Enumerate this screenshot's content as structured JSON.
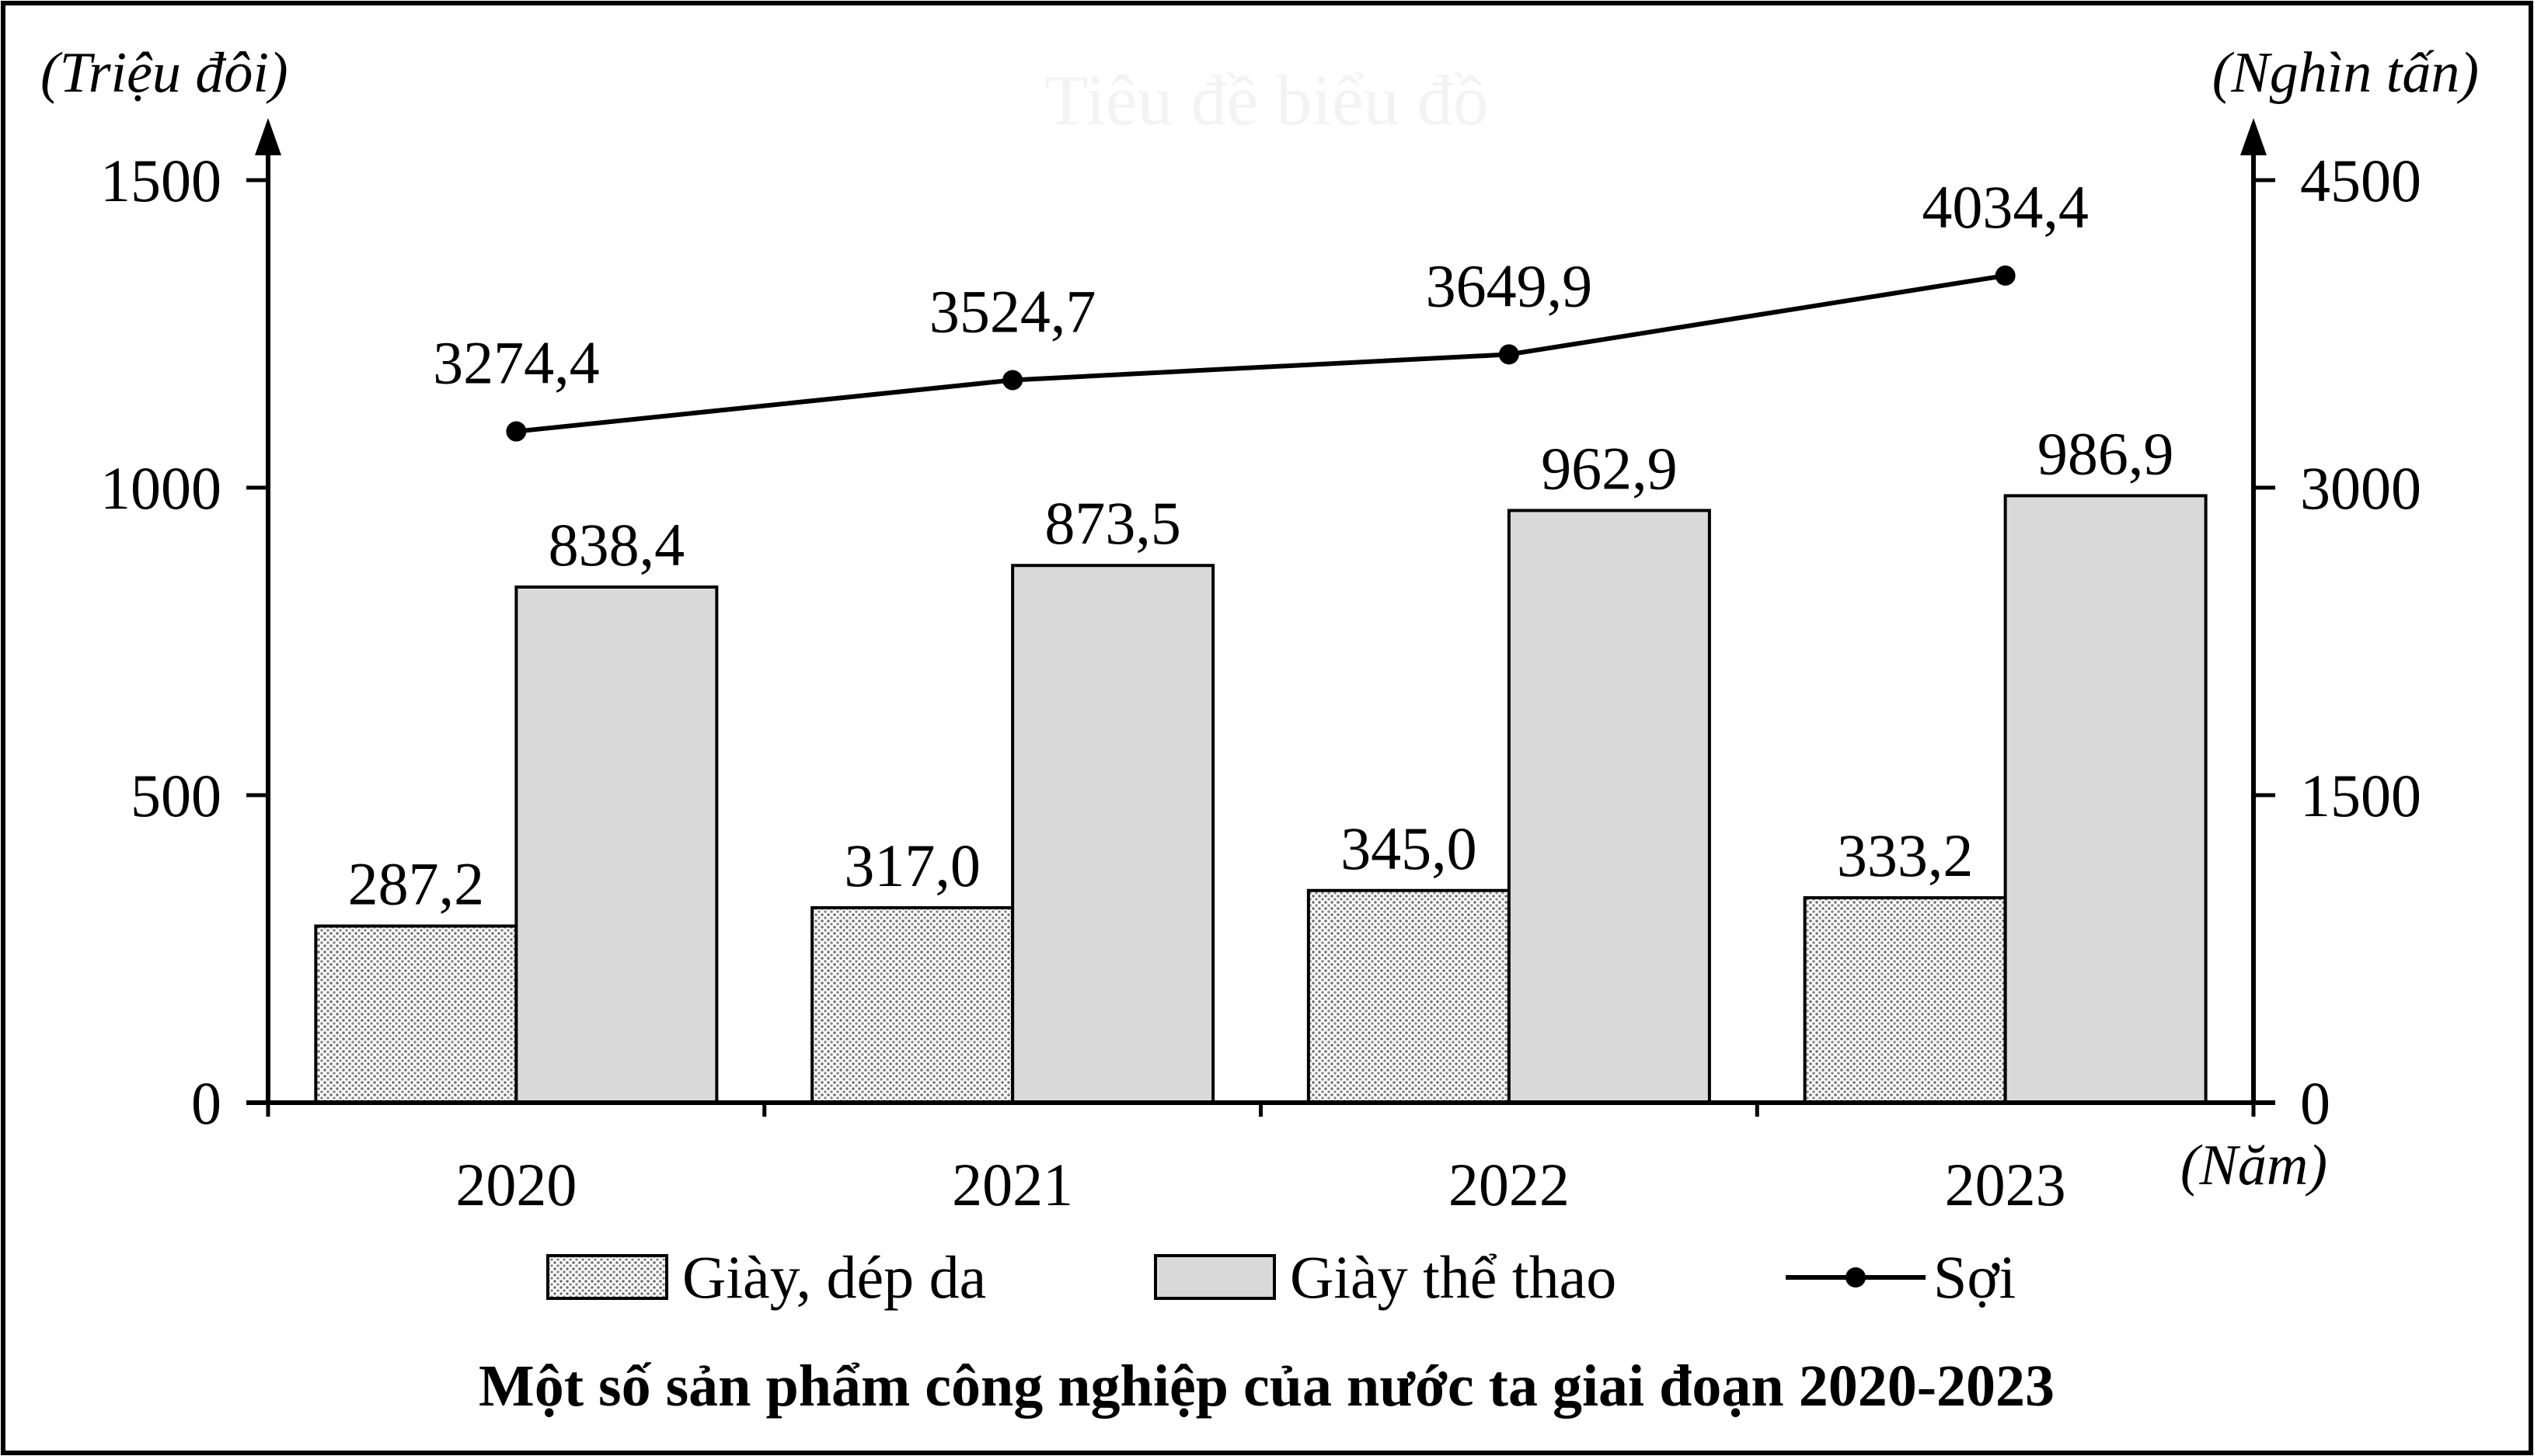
{
  "chart_data": {
    "type": "bar",
    "title": "Một số sản phẩm công nghiệp của nước ta giai đoạn 2020-2023",
    "watermark": "Tiêu đề biểu đồ",
    "categories": [
      "2020",
      "2021",
      "2022",
      "2023"
    ],
    "xlabel": "(Năm)",
    "ylabel_left": "(Triệu đôi)",
    "ylabel_right": "(Nghìn tấn)",
    "ylim_left": [
      0,
      1500
    ],
    "yticks_left": [
      "0",
      "500",
      "1000",
      "1500"
    ],
    "ylim_right": [
      0,
      4500
    ],
    "yticks_right": [
      "0",
      "1500",
      "3000",
      "4500"
    ],
    "grid": false,
    "legend_position": "bottom",
    "series": [
      {
        "name": "Giày, dép da",
        "kind": "bar",
        "axis": "left",
        "fill": "dotted-gray",
        "values": [
          287.2,
          317.0,
          345.0,
          333.2
        ],
        "labels": [
          "287,2",
          "317,0",
          "345,0",
          "333,2"
        ]
      },
      {
        "name": "Giày thể thao",
        "kind": "bar",
        "axis": "left",
        "fill": "#d9d9d9",
        "values": [
          838.4,
          873.5,
          962.9,
          986.9
        ],
        "labels": [
          "838,4",
          "873,5",
          "962,9",
          "986,9"
        ]
      },
      {
        "name": "Sợi",
        "kind": "line",
        "axis": "right",
        "color": "#000000",
        "values": [
          3274.4,
          3524.7,
          3649.9,
          4034.4
        ],
        "labels": [
          "3274,4",
          "3524,7",
          "3649,9",
          "4034,4"
        ]
      }
    ]
  }
}
